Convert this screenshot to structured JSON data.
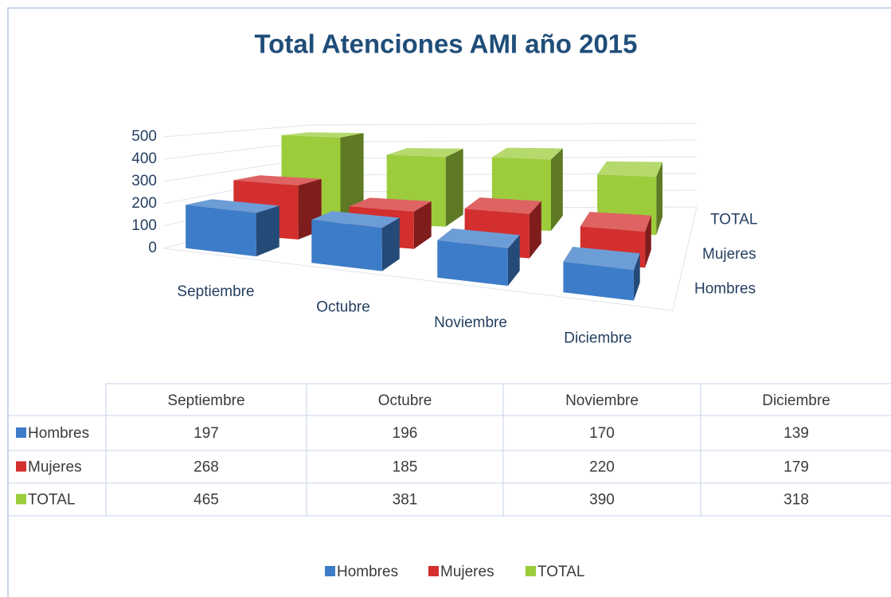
{
  "chart_data": {
    "type": "bar3d",
    "title": "Total Atenciones AMI año 2015",
    "categories": [
      "Septiembre",
      "Octubre",
      "Noviembre",
      "Diciembre"
    ],
    "series": [
      {
        "name": "Hombres",
        "color": "#3c7cc8",
        "values": [
          197,
          196,
          170,
          139
        ]
      },
      {
        "name": "Mujeres",
        "color": "#d32f2f",
        "values": [
          268,
          185,
          220,
          179
        ]
      },
      {
        "name": "TOTAL",
        "color": "#9ccc3c",
        "values": [
          465,
          381,
          390,
          318
        ]
      }
    ],
    "ylim": [
      0,
      500
    ],
    "yticks": [
      0,
      100,
      200,
      300,
      400,
      500
    ],
    "grid": true,
    "legend": "bottom",
    "data_table": true
  }
}
